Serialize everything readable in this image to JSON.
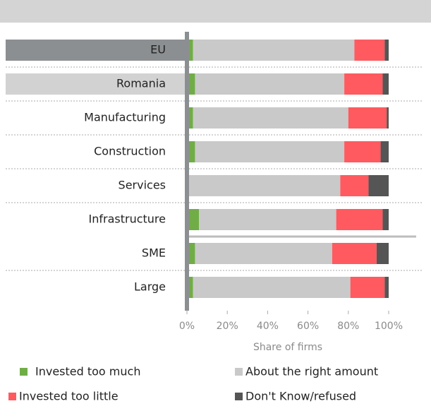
{
  "chart_data": {
    "type": "stacked-bar-horizontal",
    "categories": [
      "EU",
      "Romania",
      "Manufacturing",
      "Construction",
      "Services",
      "Infrastructure",
      "SME",
      "Large"
    ],
    "category_backgrounds": [
      "#8c8f91",
      "#d2d2d2",
      null,
      null,
      null,
      null,
      null,
      null
    ],
    "series": [
      {
        "name": "Invested too much",
        "color": "#70ad47",
        "values": [
          3,
          4,
          3,
          4,
          0,
          6,
          4,
          3
        ]
      },
      {
        "name": "About the right amount",
        "color": "#c9c9c9",
        "values": [
          80,
          74,
          77,
          74,
          76,
          68,
          68,
          78
        ]
      },
      {
        "name": "Invested too little",
        "color": "#ff5a5f",
        "values": [
          15,
          19,
          19,
          18,
          14,
          23,
          22,
          17
        ]
      },
      {
        "name": "Don't Know/refused",
        "color": "#555555",
        "values": [
          2,
          3,
          1,
          4,
          10,
          3,
          6,
          2
        ]
      }
    ],
    "xlabel": "Share of firms",
    "xlim": [
      0,
      100
    ],
    "xticks": [
      {
        "value": 0,
        "label": "0%"
      },
      {
        "value": 20,
        "label": "20%"
      },
      {
        "value": 40,
        "label": "40%"
      },
      {
        "value": 60,
        "label": "60%"
      },
      {
        "value": 80,
        "label": "80%"
      },
      {
        "value": 100,
        "label": "100%"
      }
    ]
  }
}
